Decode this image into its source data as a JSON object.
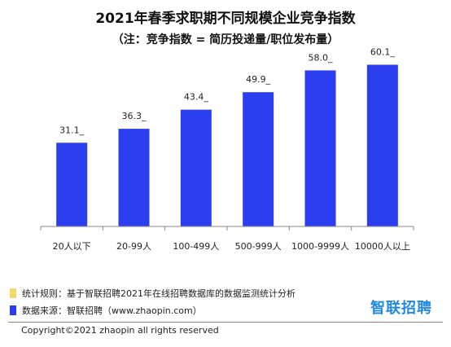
{
  "header": {
    "title": "2021年春季求职期不同规模企业竞争指数",
    "subtitle": "（注：竞争指数 = 简历投递量/职位发布量）"
  },
  "chart_data": {
    "type": "bar",
    "categories": [
      "20人以下",
      "20-99人",
      "100-499人",
      "500-999人",
      "1000-9999人",
      "10000人以上"
    ],
    "values": [
      31.1,
      36.3,
      43.4,
      49.9,
      58.0,
      60.1
    ],
    "data_labels": [
      "31.1_",
      "36.3_",
      "43.4_",
      "49.9_",
      "58.0_",
      "60.1_"
    ],
    "ylim": [
      0,
      66
    ],
    "grid": false,
    "bar_color": "#2b3ef0"
  },
  "footer": {
    "rule_label": "统计规则：基于智联招聘2021年在线招聘数据库的数据监测统计分析",
    "source_label": "数据来源：智联招聘（www.zhaopin.com）",
    "rule_color": "#f5d76e",
    "source_color": "#2b3ef0",
    "logo_text": "智联招聘",
    "copyright": "Copyright©2021 zhaopin all rights reserved"
  }
}
